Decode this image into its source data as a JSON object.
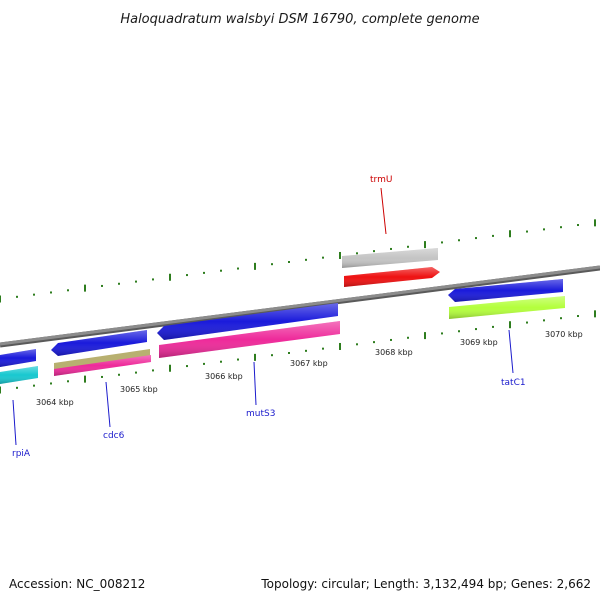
{
  "title": "Haloquadratum walsbyi DSM 16790, complete genome",
  "footer": {
    "accession": "Accession: NC_008212",
    "summary": "Topology: circular; Length: 3,132,494 bp; Genes: 2,662"
  },
  "colors": {
    "backbone": "#8c8c8c",
    "tick": "#2e7d1e",
    "label_blue": "#1a1acc",
    "label_red": "#cc0000",
    "blue_gene": "#1a1adb",
    "red_gene": "#ee1111",
    "grey_gene": "#c4c4c4",
    "cyan_gene": "#18c8d0",
    "olive_gene": "#b8b070",
    "pink_gene": "#ee2a9a",
    "lime_gene": "#b4ff3c"
  },
  "chart_data": {
    "type": "genome-map",
    "axis_unit": "kbp",
    "tick_labels": [
      "3064 kbp",
      "3065 kbp",
      "3066 kbp",
      "3067 kbp",
      "3068 kbp",
      "3069 kbp",
      "3070 kbp"
    ],
    "gene_labels": [
      {
        "name": "trmU",
        "color": "red"
      },
      {
        "name": "rpiA",
        "color": "blue"
      },
      {
        "name": "cdc6",
        "color": "blue"
      },
      {
        "name": "mutS3",
        "color": "blue"
      },
      {
        "name": "tatC1",
        "color": "blue"
      }
    ],
    "features": [
      {
        "track": "forward",
        "color": "grey_gene",
        "label": ""
      },
      {
        "track": "forward",
        "color": "red_gene",
        "label": "trmU"
      },
      {
        "track": "reverse",
        "color": "blue_gene",
        "label": ""
      },
      {
        "track": "reverse",
        "color": "cyan_gene",
        "label": "rpiA"
      },
      {
        "track": "reverse",
        "color": "blue_gene",
        "label": ""
      },
      {
        "track": "reverse",
        "color": "olive_gene",
        "label": ""
      },
      {
        "track": "reverse",
        "color": "pink_gene",
        "label": "cdc6"
      },
      {
        "track": "reverse",
        "color": "blue_gene",
        "label": ""
      },
      {
        "track": "reverse",
        "color": "pink_gene",
        "label": "mutS3"
      },
      {
        "track": "reverse",
        "color": "blue_gene",
        "label": ""
      },
      {
        "track": "reverse",
        "color": "lime_gene",
        "label": "tatC1"
      }
    ]
  }
}
